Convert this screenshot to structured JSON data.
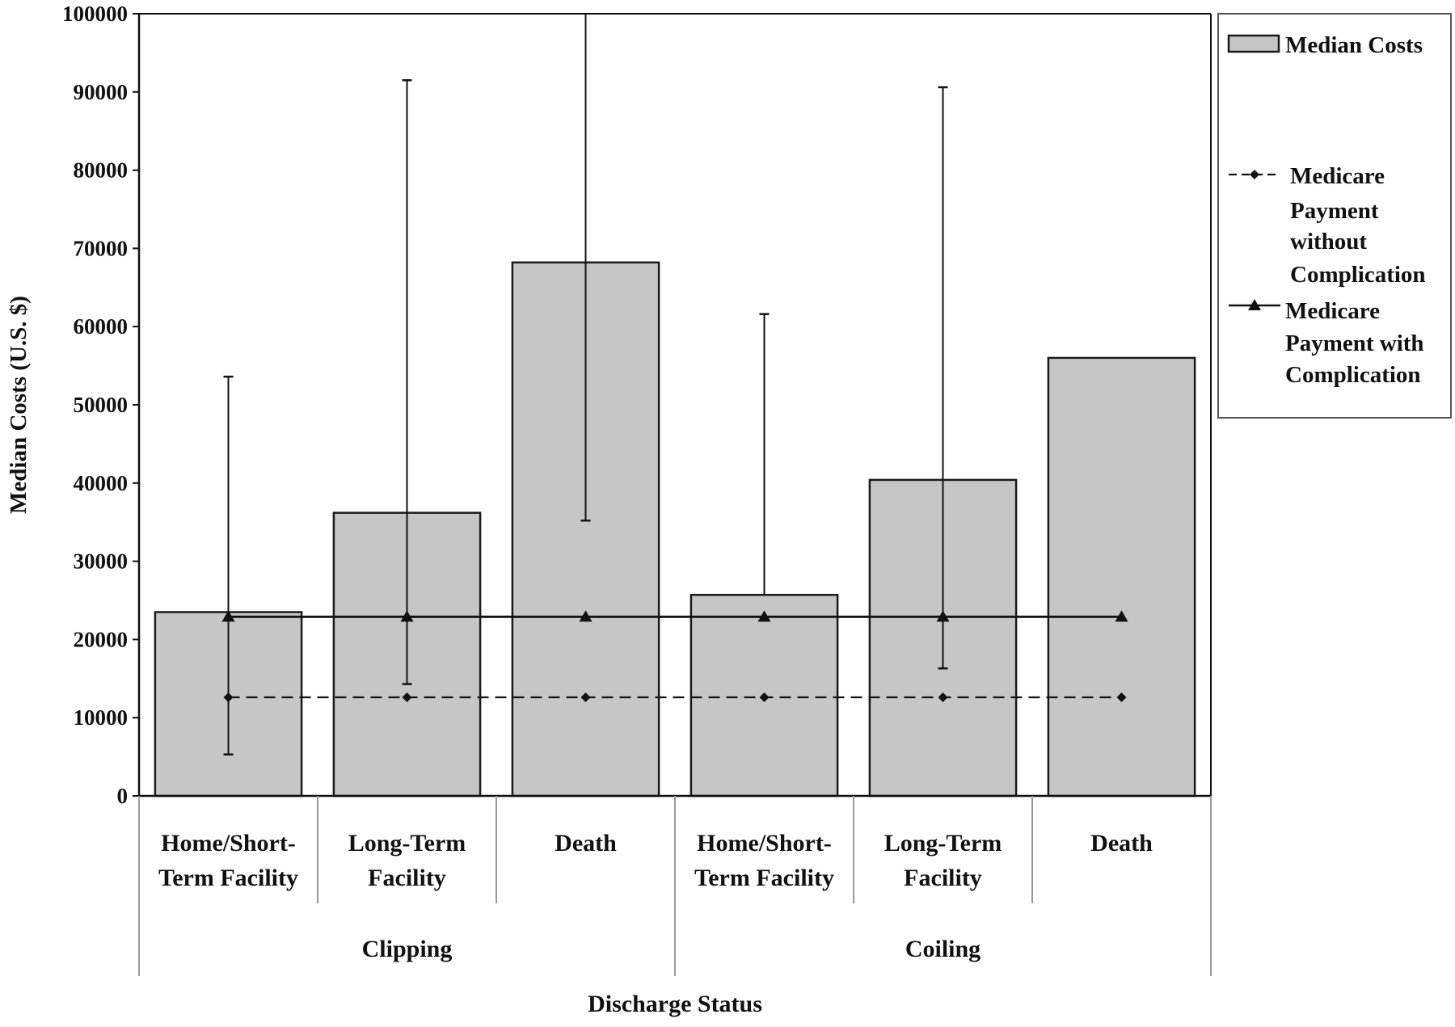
{
  "chart_data": {
    "type": "bar",
    "ylabel": "Median Costs (U.S. $)",
    "xlabel": "Discharge Status",
    "ylim": [
      0,
      100000
    ],
    "yticks": [
      0,
      10000,
      20000,
      30000,
      40000,
      50000,
      60000,
      70000,
      80000,
      90000,
      100000
    ],
    "categories": [
      [
        "Home/Short-",
        "Term Facility"
      ],
      [
        "Long-Term",
        "Facility"
      ],
      [
        "Death"
      ],
      [
        "Home/Short-",
        "Term Facility"
      ],
      [
        "Long-Term",
        "Facility"
      ],
      [
        "Death"
      ]
    ],
    "groups": [
      {
        "label": "Clipping",
        "count": 3
      },
      {
        "label": "Coiling",
        "count": 3
      }
    ],
    "series": [
      {
        "name": "Median Costs",
        "kind": "bar",
        "values": [
          23500,
          36200,
          68200,
          25700,
          40400,
          56000
        ],
        "error_low": [
          5300,
          14300,
          35200,
          null,
          16300,
          null
        ],
        "error_high": [
          53600,
          91500,
          100000,
          61600,
          90600,
          null
        ]
      },
      {
        "name": "Medicare Payment without Complication",
        "kind": "line",
        "style": "dashed",
        "marker": "diamond",
        "values": [
          12600,
          12600,
          12600,
          12600,
          12600,
          12600
        ]
      },
      {
        "name": "Medicare Payment with Complication",
        "kind": "line",
        "style": "solid",
        "marker": "triangle",
        "values": [
          22900,
          22900,
          22900,
          22900,
          22900,
          22900
        ]
      }
    ],
    "legend": {
      "position": "right",
      "entries": [
        {
          "label_lines": [
            "Median Costs"
          ]
        },
        {
          "label_lines": [
            "Medicare",
            "Payment",
            "without",
            "Complication"
          ]
        },
        {
          "label_lines": [
            "Medicare",
            "Payment with",
            "Complication"
          ]
        }
      ]
    },
    "colors": {
      "bar_fill": "#c6c6c6",
      "bar_stroke": "#1a1a1a",
      "line": "#111111",
      "grid_divider": "#9a9a9a"
    }
  }
}
